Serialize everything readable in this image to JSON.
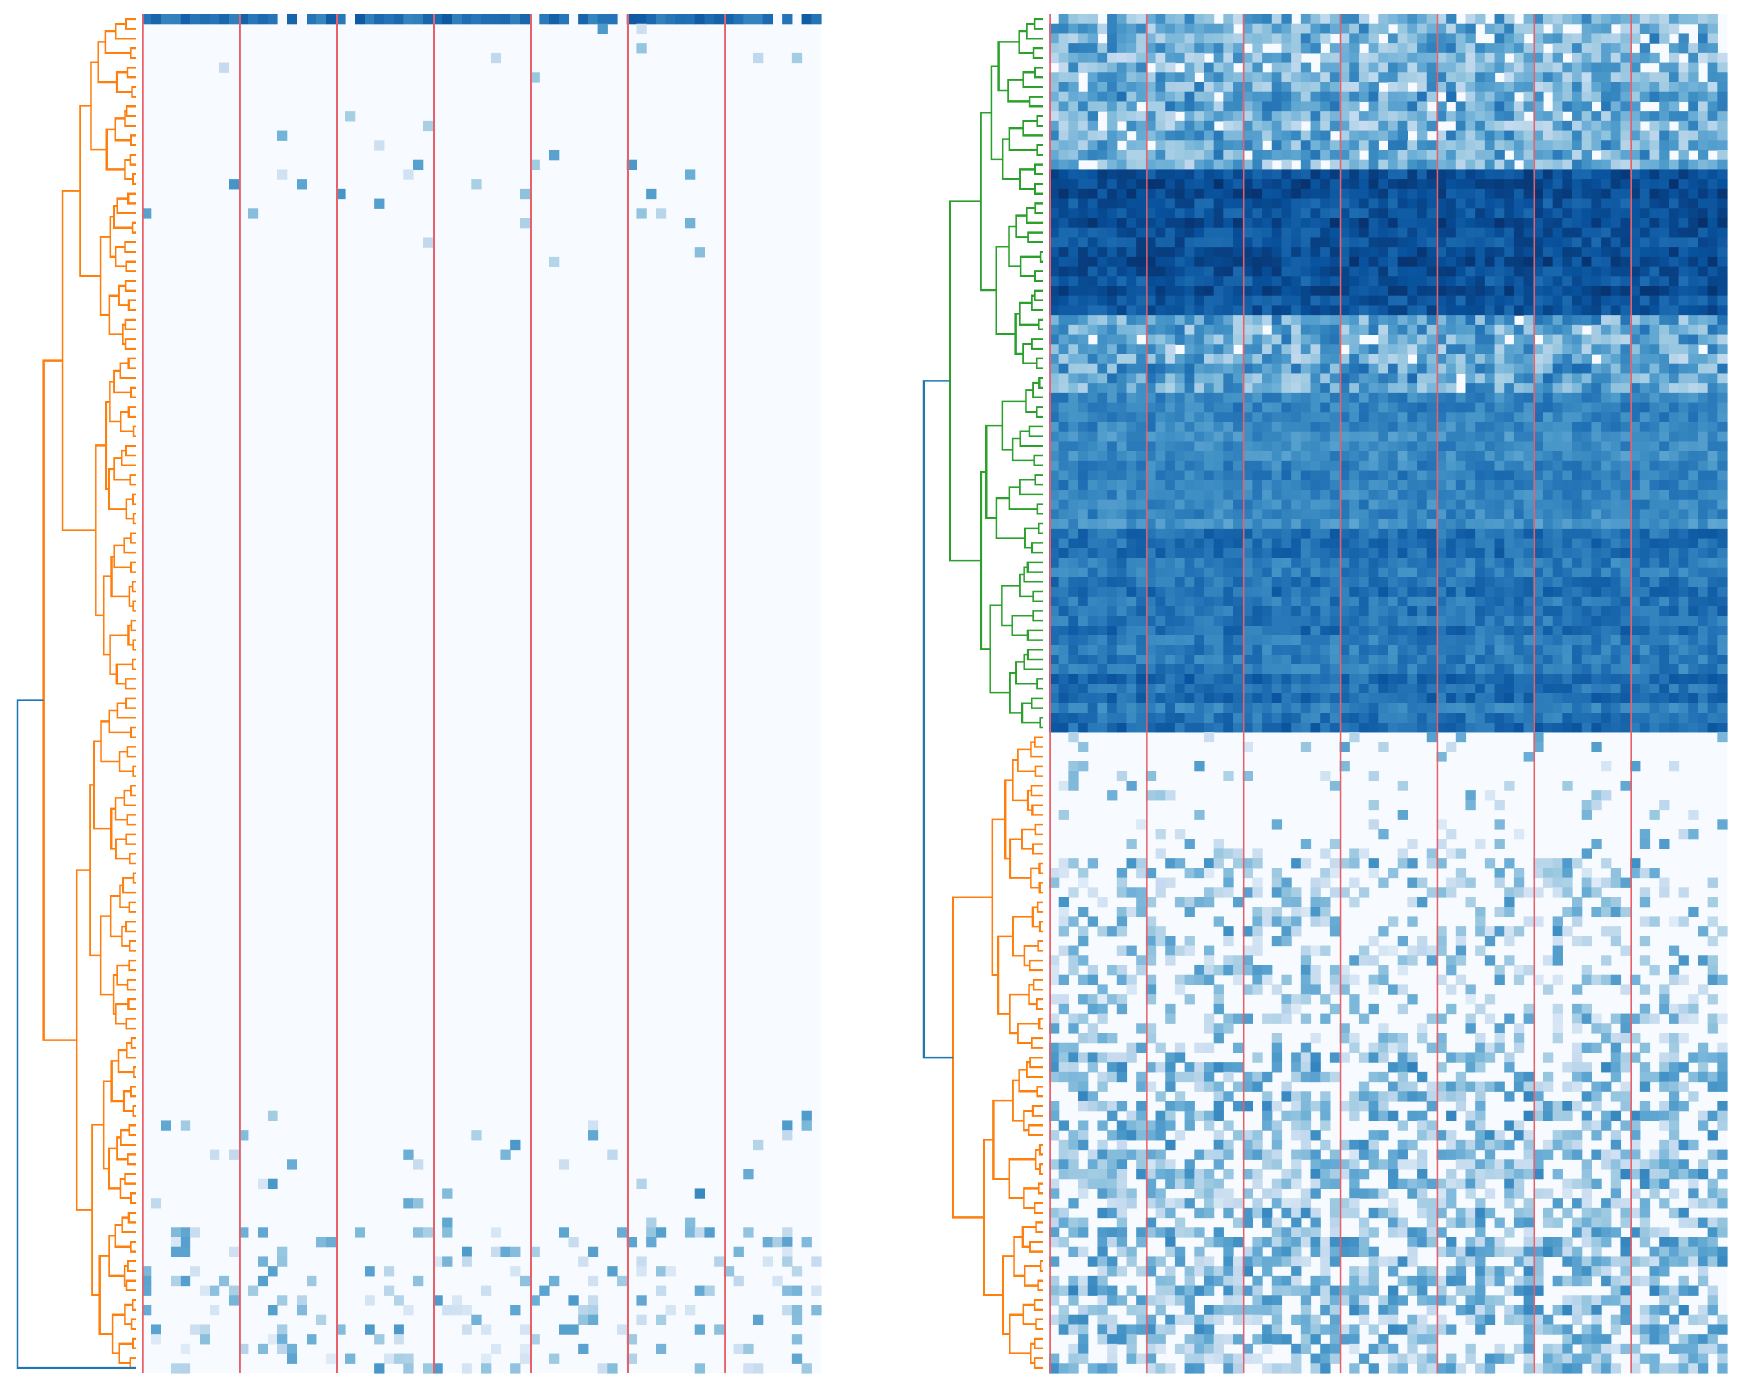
{
  "figure": {
    "title": "",
    "panel_count": 2,
    "colormap": "Blues",
    "background": "#ffffff"
  },
  "colors": {
    "root_link": "#1f77b4",
    "cluster_orange": "#ff7f0e",
    "cluster_green": "#2ca02c",
    "separator": "#e8606a",
    "heat_low": "#f7fbff",
    "heat_high": "#08306b"
  },
  "chart_data": [
    {
      "type": "heatmap",
      "title": "",
      "xlabel": "",
      "ylabel": "",
      "x_tick_labels": [],
      "y_tick_labels": [],
      "colorbar": false,
      "n_rows": 140,
      "n_columns": 70,
      "column_groups": 7,
      "group_boundaries_after_column": [
        0,
        10,
        20,
        30,
        40,
        50,
        60
      ],
      "row_dendrogram": {
        "side": "left",
        "clusters": [
          {
            "color": "cluster_orange",
            "rows": [
              0,
              139
            ]
          }
        ],
        "root_color": "root_link"
      },
      "bands": [
        {
          "rows": [
            0,
            0
          ],
          "mean": 0.78,
          "density": 0.85
        },
        {
          "rows": [
            1,
            25
          ],
          "mean": 0.4,
          "density": 0.02
        },
        {
          "rows": [
            26,
            112
          ],
          "mean": 0.0,
          "density": 0.0
        },
        {
          "rows": [
            113,
            124
          ],
          "mean": 0.4,
          "density": 0.04
        },
        {
          "rows": [
            125,
            139
          ],
          "mean": 0.35,
          "density": 0.18
        }
      ]
    },
    {
      "type": "heatmap",
      "title": "",
      "xlabel": "",
      "ylabel": "",
      "x_tick_labels": [],
      "y_tick_labels": [],
      "colorbar": false,
      "n_rows": 140,
      "n_columns": 70,
      "column_groups": 7,
      "group_boundaries_after_column": [
        0,
        10,
        20,
        30,
        40,
        50,
        60
      ],
      "row_dendrogram": {
        "side": "left",
        "clusters": [
          {
            "color": "cluster_green",
            "rows": [
              0,
              73
            ]
          },
          {
            "color": "cluster_orange",
            "rows": [
              74,
              139
            ]
          }
        ],
        "root_color": "root_link"
      },
      "bands": [
        {
          "rows": [
            0,
            15
          ],
          "mean": 0.5,
          "density": 0.9
        },
        {
          "rows": [
            16,
            30
          ],
          "mean": 0.88,
          "density": 1.0
        },
        {
          "rows": [
            31,
            38
          ],
          "mean": 0.52,
          "density": 0.96
        },
        {
          "rows": [
            39,
            52
          ],
          "mean": 0.66,
          "density": 1.0
        },
        {
          "rows": [
            53,
            73
          ],
          "mean": 0.74,
          "density": 1.0
        },
        {
          "rows": [
            74,
            86
          ],
          "mean": 0.35,
          "density": 0.12
        },
        {
          "rows": [
            87,
            106
          ],
          "mean": 0.38,
          "density": 0.38
        },
        {
          "rows": [
            107,
            116
          ],
          "mean": 0.45,
          "density": 0.55
        },
        {
          "rows": [
            117,
            139
          ],
          "mean": 0.42,
          "density": 0.62
        }
      ]
    }
  ]
}
